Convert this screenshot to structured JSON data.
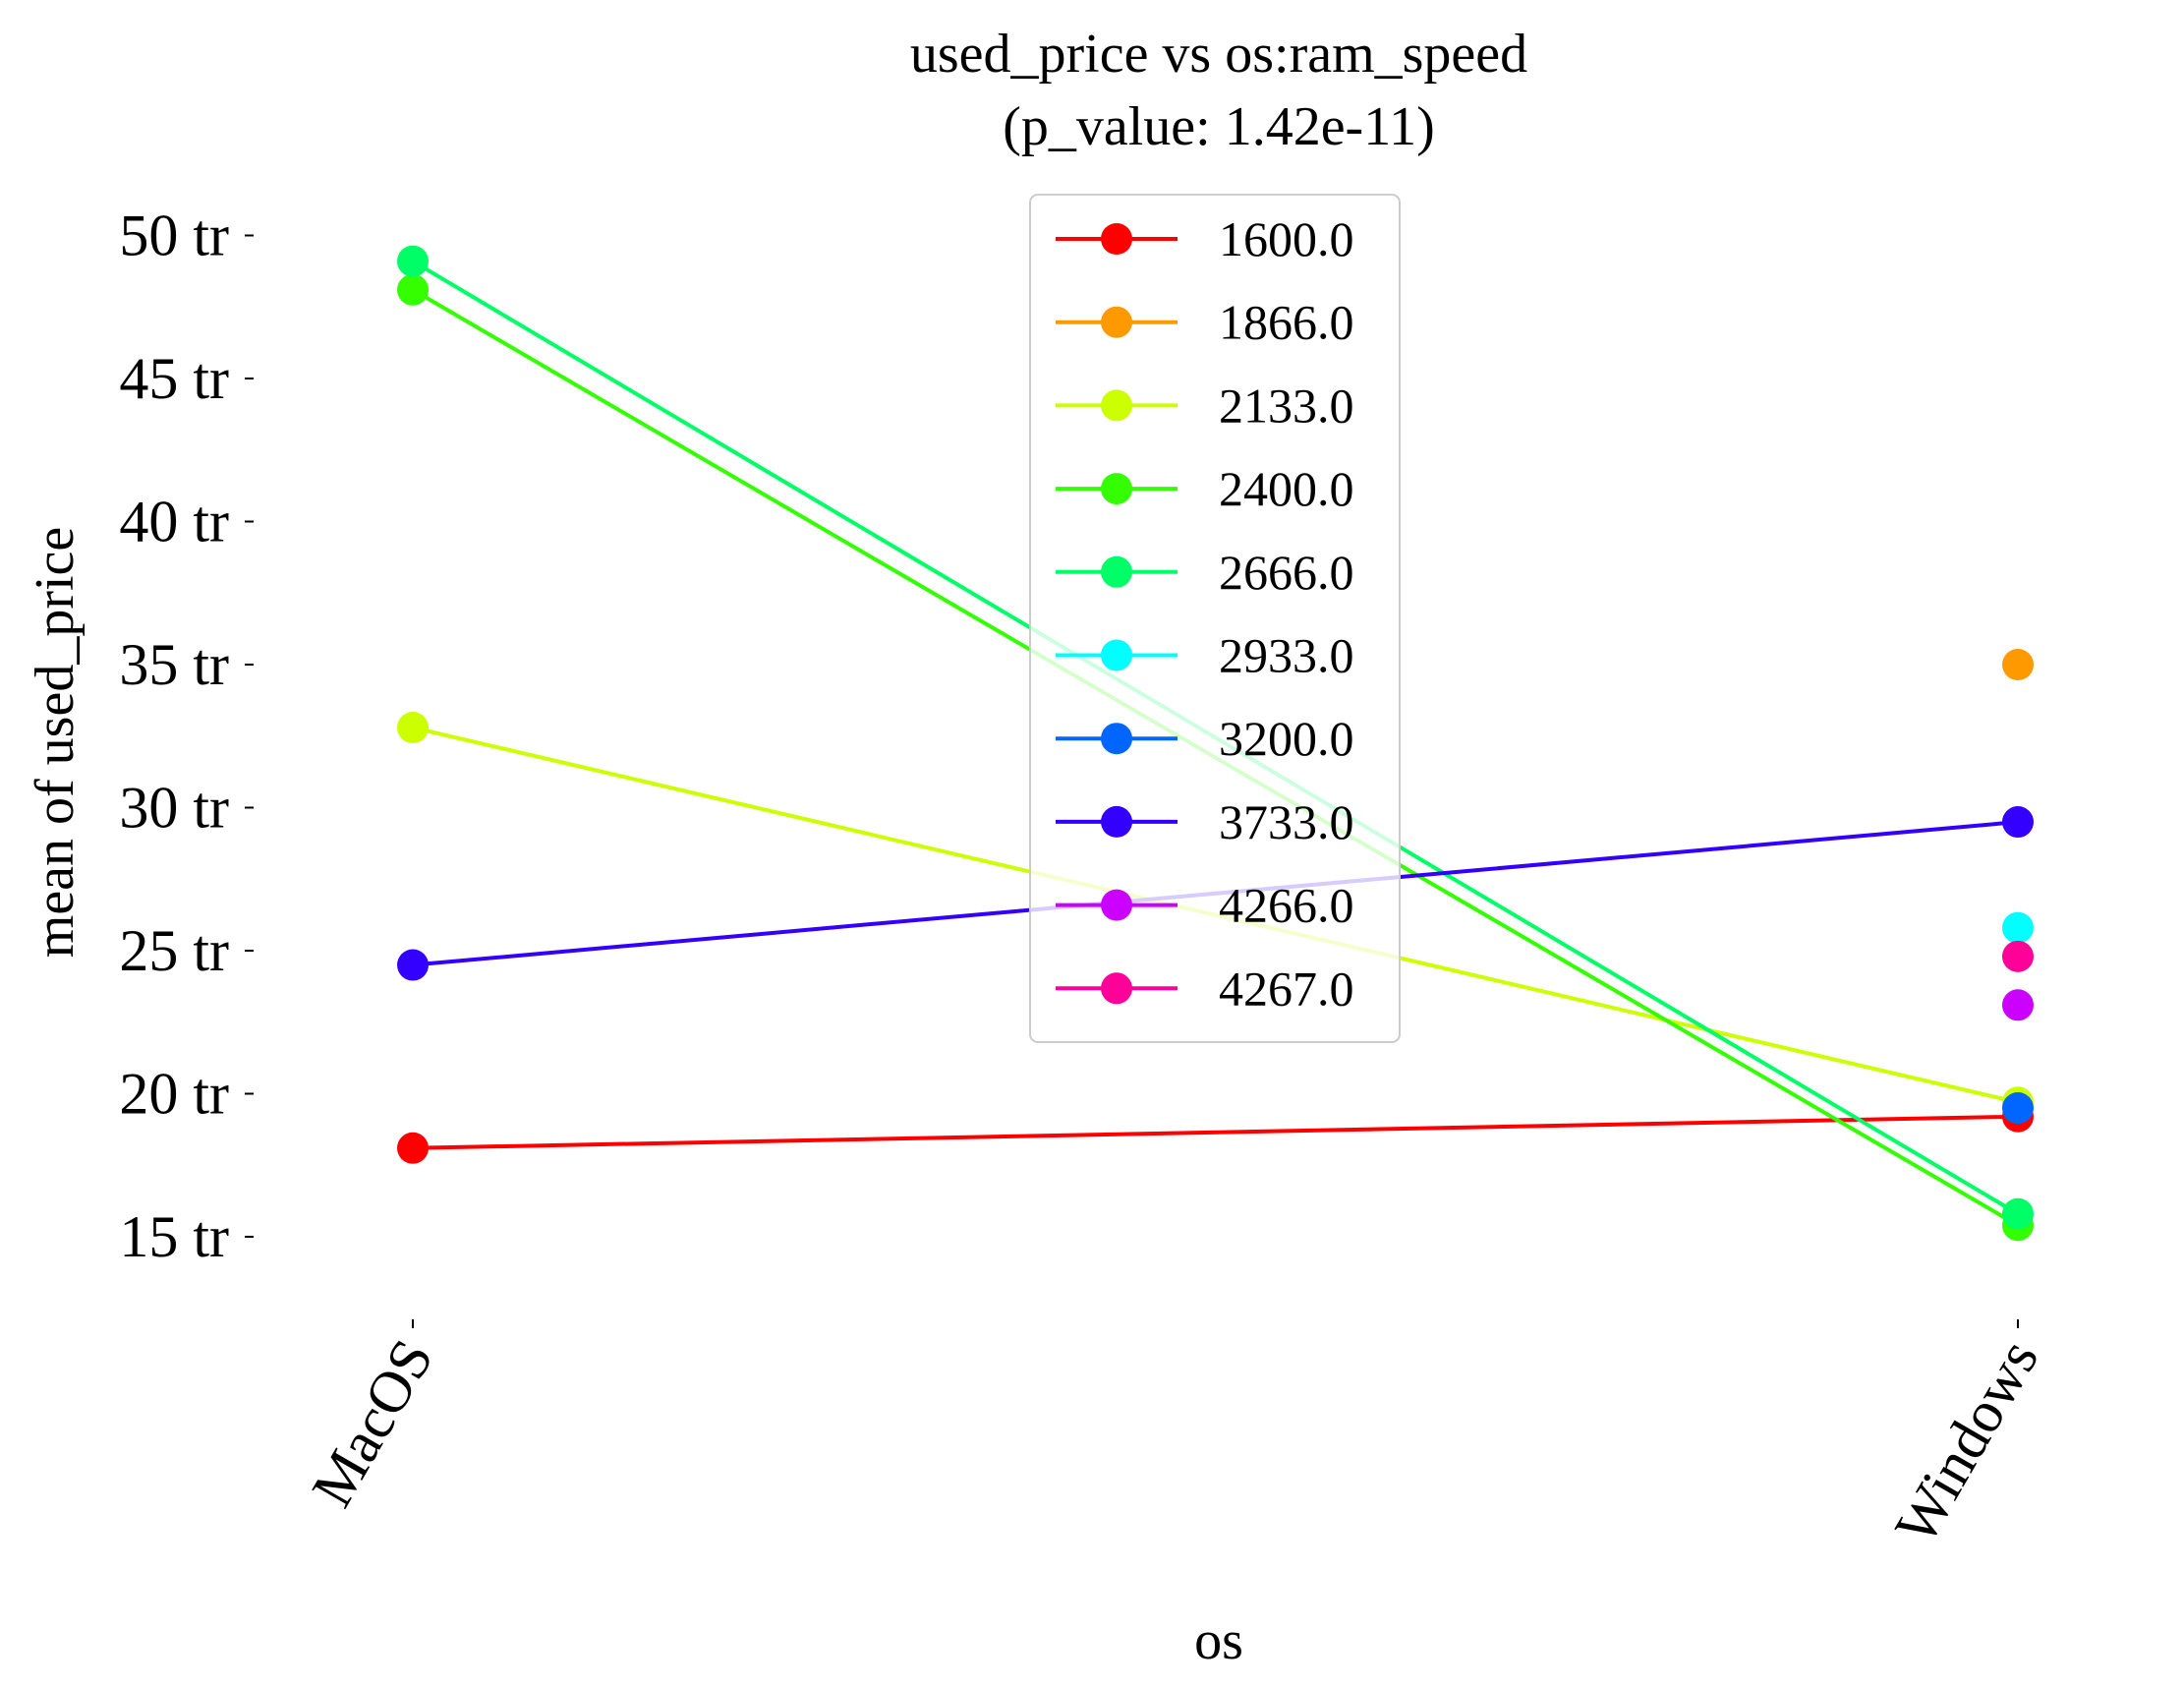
{
  "chart_data": {
    "type": "line",
    "title": "used_price vs os:ram_speed",
    "subtitle": "(p_value: 1.42e-11)",
    "xlabel": "os",
    "ylabel": "mean of used_price",
    "categories": [
      "MacOS",
      "Windows"
    ],
    "y_ticks": [
      {
        "value": 15,
        "label": "15 tr"
      },
      {
        "value": 20,
        "label": "20 tr"
      },
      {
        "value": 25,
        "label": "25 tr"
      },
      {
        "value": 30,
        "label": "30 tr"
      },
      {
        "value": 35,
        "label": "35 tr"
      },
      {
        "value": 40,
        "label": "40 tr"
      },
      {
        "value": 45,
        "label": "45 tr"
      },
      {
        "value": 50,
        "label": "50 tr"
      }
    ],
    "ylim": [
      12.5,
      52.5
    ],
    "legend_position": "top-center",
    "grid": false,
    "series": [
      {
        "name": "1600.0",
        "color": "#ff0000",
        "values": [
          18.1,
          19.2
        ]
      },
      {
        "name": "1866.0",
        "color": "#ff9900",
        "values": [
          null,
          35.0
        ]
      },
      {
        "name": "2133.0",
        "color": "#ccff00",
        "values": [
          32.8,
          19.7
        ]
      },
      {
        "name": "2400.0",
        "color": "#33ff00",
        "values": [
          48.1,
          15.4
        ]
      },
      {
        "name": "2666.0",
        "color": "#00ff66",
        "values": [
          49.1,
          15.8
        ]
      },
      {
        "name": "2933.0",
        "color": "#00ffff",
        "values": [
          null,
          25.8
        ]
      },
      {
        "name": "3200.0",
        "color": "#0066ff",
        "values": [
          null,
          19.5
        ]
      },
      {
        "name": "3733.0",
        "color": "#3300ff",
        "values": [
          24.5,
          29.5
        ]
      },
      {
        "name": "4266.0",
        "color": "#cc00ff",
        "values": [
          null,
          23.1
        ]
      },
      {
        "name": "4267.0",
        "color": "#ff0099",
        "values": [
          null,
          24.8
        ]
      }
    ]
  }
}
